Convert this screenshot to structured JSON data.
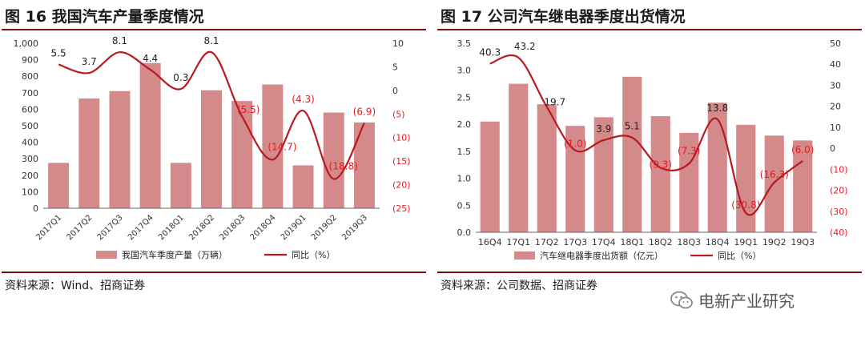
{
  "charts": [
    {
      "title": "图 16 我国汽车产量季度情况",
      "source": "资料来源：Wind、招商证券",
      "chart_data": {
        "type": "bar",
        "categories": [
          "2017Q1",
          "2017Q2",
          "2017Q3",
          "2017Q4",
          "2018Q1",
          "2018Q2",
          "2018Q3",
          "2018Q4",
          "2019Q1",
          "2019Q2",
          "2019Q3"
        ],
        "series": [
          {
            "name": "我国汽车季度产量（万辆）",
            "type": "bar",
            "axis": "left",
            "values": [
              275,
              665,
              710,
              880,
              275,
              715,
              650,
              750,
              260,
              580,
              520
            ]
          },
          {
            "name": "同比（%）",
            "type": "line",
            "axis": "right",
            "values": [
              5.5,
              3.7,
              8.1,
              4.4,
              0.3,
              8.1,
              -5.5,
              -14.7,
              -4.3,
              -18.8,
              -6.9
            ]
          }
        ],
        "data_labels": [
          "5.5",
          "3.7",
          "8.1",
          "4.4",
          "0.3",
          "8.1",
          "(5.5)",
          "(14.7)",
          "(4.3)",
          "(18.8)",
          "(6.9)"
        ],
        "y_left": {
          "min": 0,
          "max": 1000,
          "step": 100,
          "ticks": [
            "0",
            "100",
            "200",
            "300",
            "400",
            "500",
            "600",
            "700",
            "800",
            "900",
            "1,000"
          ]
        },
        "y_right": {
          "min": -25,
          "max": 10,
          "step": 5,
          "ticks": [
            "(25)",
            "(20)",
            "(15)",
            "(10)",
            "(5)",
            "0",
            "5",
            "10"
          ]
        },
        "legend": "bottom",
        "colors": {
          "bar": "#d4898a",
          "line": "#b81a1f",
          "neg_label": "#e8191f"
        }
      }
    },
    {
      "title": "图 17 公司汽车继电器季度出货情况",
      "source": "资料来源：公司数据、招商证券",
      "chart_data": {
        "type": "bar",
        "categories": [
          "16Q4",
          "17Q1",
          "17Q2",
          "17Q3",
          "17Q4",
          "18Q1",
          "18Q2",
          "18Q3",
          "18Q4",
          "19Q1",
          "19Q2",
          "19Q3"
        ],
        "series": [
          {
            "name": "汽车继电器季度出货额（亿元）",
            "type": "bar",
            "axis": "left",
            "values": [
              2.05,
              2.75,
              2.37,
              1.97,
              2.13,
              2.88,
              2.15,
              1.84,
              2.4,
              1.99,
              1.79,
              1.7
            ]
          },
          {
            "name": "同比（%）",
            "type": "line",
            "axis": "right",
            "values": [
              40.3,
              43.2,
              19.7,
              -1.0,
              3.9,
              5.1,
              -9.3,
              -7.3,
              13.8,
              -30.8,
              -16.3,
              -6.0
            ]
          }
        ],
        "data_labels": [
          "40.3",
          "43.2",
          "19.7",
          "(1.0)",
          "3.9",
          "5.1",
          "(9.3)",
          "(7.3)",
          "13.8",
          "(30.8)",
          "(16.3)",
          "(6.0)"
        ],
        "y_left": {
          "min": 0,
          "max": 3.5,
          "step": 0.5,
          "ticks": [
            "0.0",
            "0.5",
            "1.0",
            "1.5",
            "2.0",
            "2.5",
            "3.0",
            "3.5"
          ]
        },
        "y_right": {
          "min": -40,
          "max": 50,
          "step": 10,
          "ticks": [
            "(40)",
            "(30)",
            "(20)",
            "(10)",
            "0",
            "10",
            "20",
            "30",
            "40",
            "50"
          ]
        },
        "legend": "bottom",
        "colors": {
          "bar": "#d4898a",
          "line": "#b81a1f",
          "neg_label": "#e8191f"
        }
      }
    }
  ],
  "watermark": {
    "text": "电新产业研究",
    "icon": "wechat-icon"
  }
}
